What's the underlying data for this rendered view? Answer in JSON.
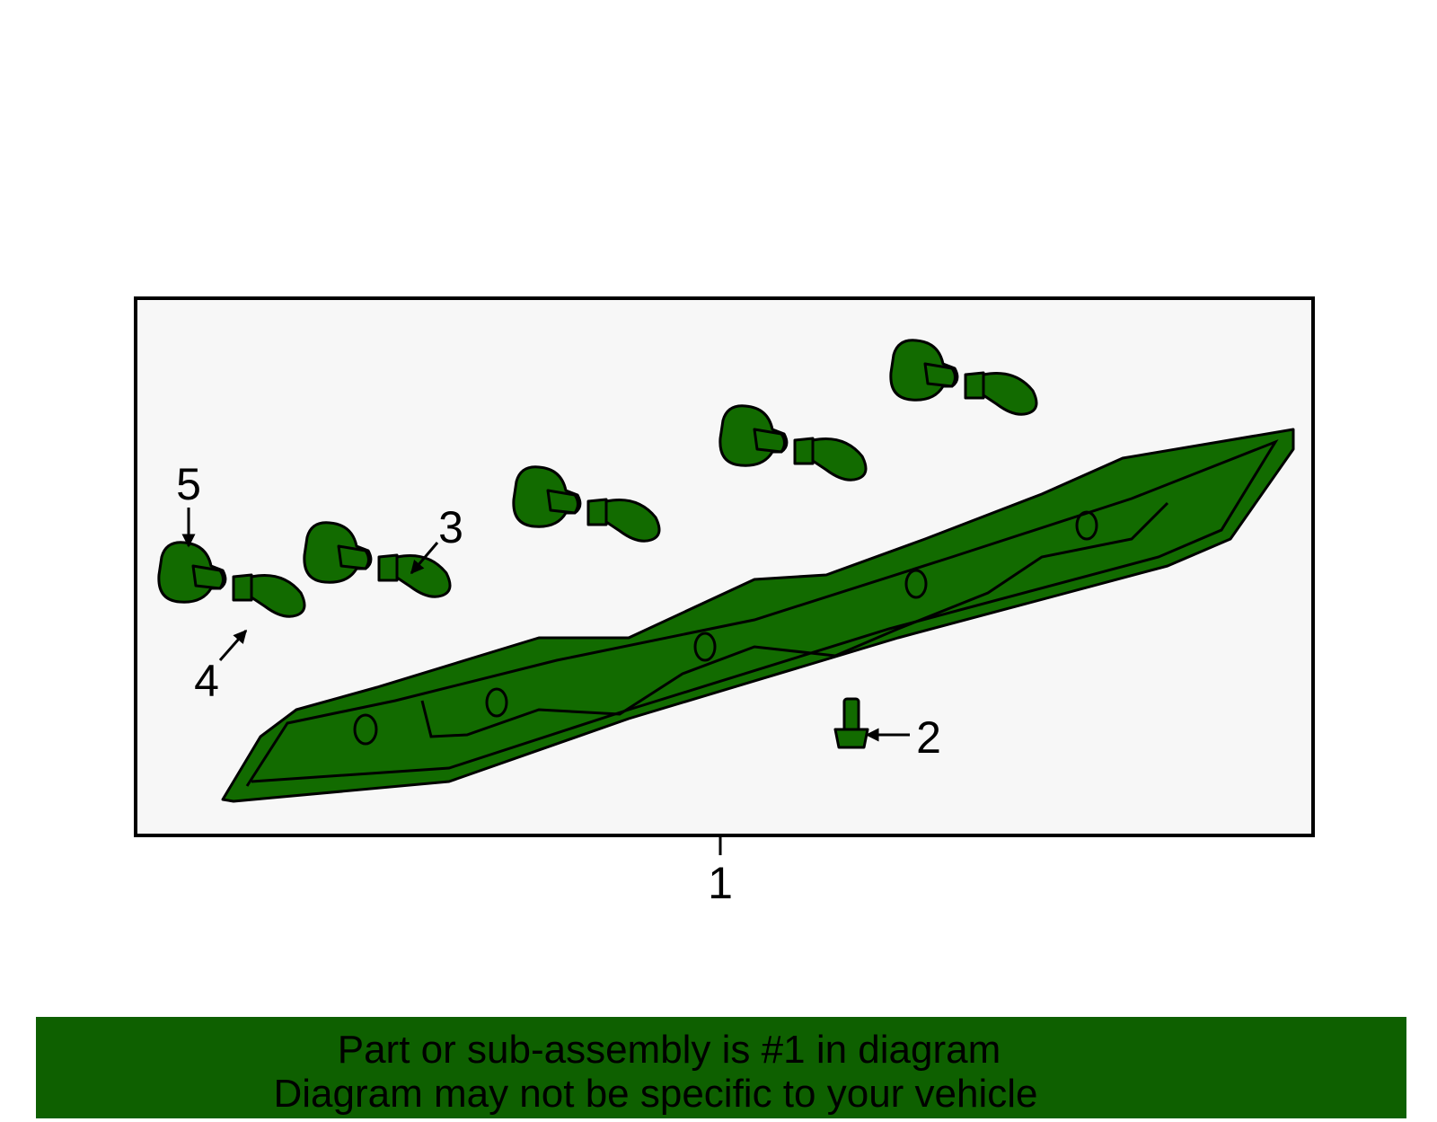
{
  "callouts": [
    "1",
    "2",
    "3",
    "4",
    "5"
  ],
  "banner": {
    "lines": [
      "Part or sub-assembly is #1 in diagram",
      "Diagram may not be specific to your vehicle"
    ]
  }
}
